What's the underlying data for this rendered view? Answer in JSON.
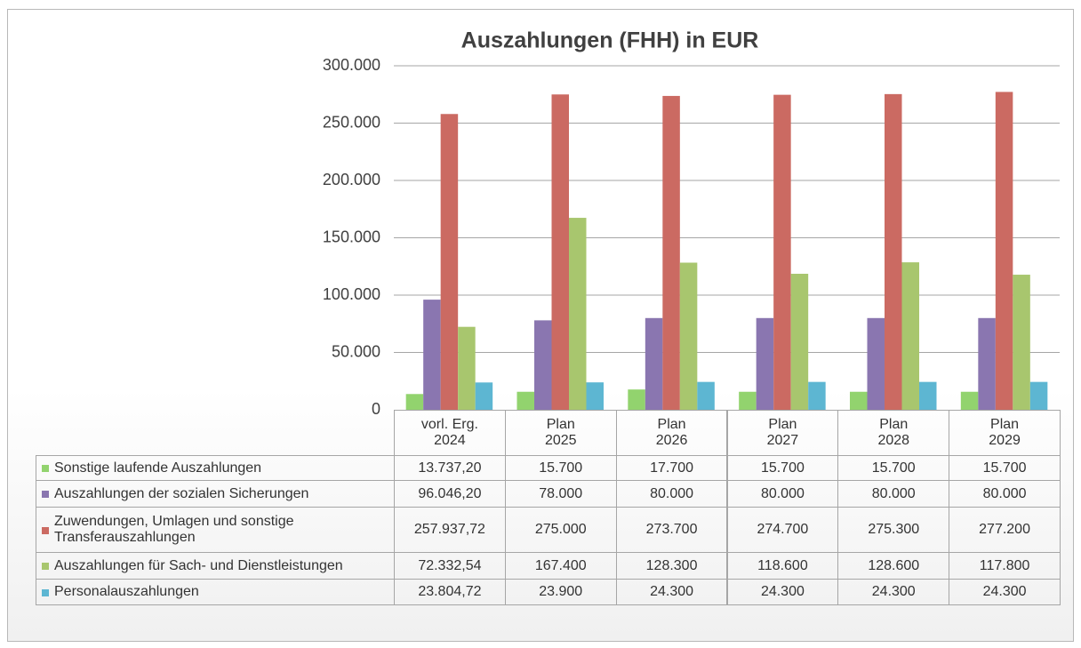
{
  "chart_data": {
    "type": "bar",
    "title": "Auszahlungen (FHH) in EUR",
    "categories": [
      "vorl. Erg.\n2024",
      "Plan\n2025",
      "Plan\n2026",
      "Plan\n2027",
      "Plan\n2028",
      "Plan\n2029"
    ],
    "ylim": [
      0,
      300000
    ],
    "yticks": [
      0,
      {
        "value": 50000,
        "label": "50.000"
      },
      {
        "value": 100000,
        "label": "100.000"
      },
      {
        "value": 150000,
        "label": "150.000"
      },
      {
        "value": 200000,
        "label": "200.000"
      },
      {
        "value": 250000,
        "label": "250.000"
      },
      {
        "value": 300000,
        "label": "300.000"
      }
    ],
    "grid": true,
    "series": [
      {
        "name": "Sonstige laufende Auszahlungen",
        "color": "#92d36e",
        "values": [
          13737.2,
          15700,
          17700,
          15700,
          15700,
          15700
        ],
        "value_labels": [
          "13.737,20",
          "15.700",
          "17.700",
          "15.700",
          "15.700",
          "15.700"
        ]
      },
      {
        "name": "Auszahlungen der sozialen Sicherungen",
        "color": "#8a76b0",
        "values": [
          96046.2,
          78000,
          80000,
          80000,
          80000,
          80000
        ],
        "value_labels": [
          "96.046,20",
          "78.000",
          "80.000",
          "80.000",
          "80.000",
          "80.000"
        ]
      },
      {
        "name": "Zuwendungen, Umlagen und sonstige Transferauszahlungen",
        "color": "#cb6a62",
        "values": [
          257937.72,
          275000,
          273700,
          274700,
          275300,
          277200
        ],
        "value_labels": [
          "257.937,72",
          "275.000",
          "273.700",
          "274.700",
          "275.300",
          "277.200"
        ]
      },
      {
        "name": "Auszahlungen für Sach- und Dienstleistungen",
        "color": "#a8c66e",
        "values": [
          72332.54,
          167400,
          128300,
          118600,
          128600,
          117800
        ],
        "value_labels": [
          "72.332,54",
          "167.400",
          "128.300",
          "118.600",
          "128.600",
          "117.800"
        ]
      },
      {
        "name": "Personalauszahlungen",
        "color": "#5db6d2",
        "values": [
          23804.72,
          23900,
          24300,
          24300,
          24300,
          24300
        ],
        "value_labels": [
          "23.804,72",
          "23.900",
          "24.300",
          "24.300",
          "24.300",
          "24.300"
        ]
      }
    ]
  }
}
